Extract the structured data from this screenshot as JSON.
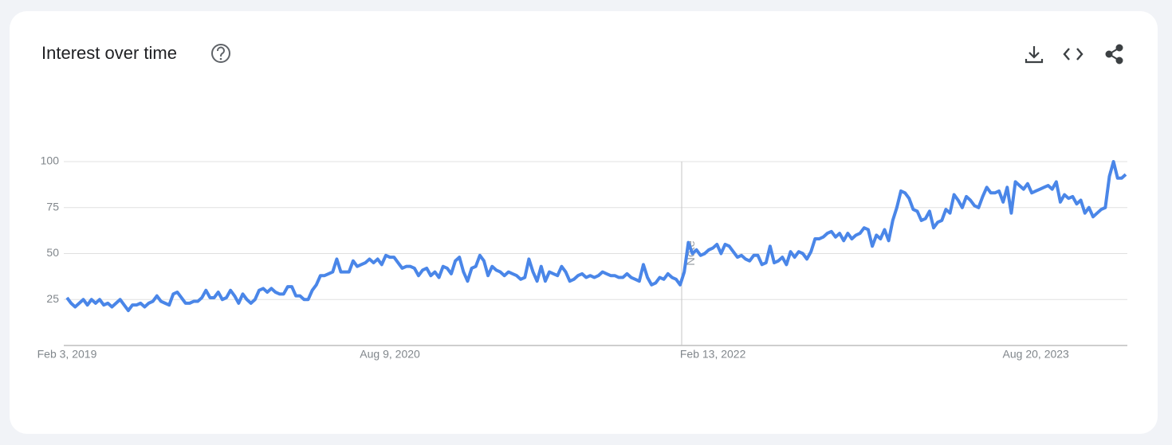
{
  "title": "Interest over time",
  "chart_data": {
    "type": "line",
    "color": "#4a86e8",
    "grid": true,
    "annotations": [
      "Note"
    ],
    "categories": [
      "Feb 3, 2019",
      null,
      null,
      null,
      null,
      null,
      null,
      null,
      null,
      null,
      null,
      null,
      null,
      null,
      null,
      null,
      null,
      null,
      null,
      null,
      null,
      null,
      null,
      null,
      null,
      null,
      null,
      null,
      null,
      null,
      null,
      null,
      null,
      null,
      null,
      null,
      null,
      null,
      null,
      null,
      null,
      null,
      null,
      null,
      null,
      null,
      null,
      null,
      null,
      null,
      null,
      null,
      null,
      null,
      null,
      null,
      null,
      null,
      null,
      null,
      null,
      null,
      null,
      null,
      null,
      null,
      null,
      null,
      null,
      null,
      null,
      null,
      null,
      null,
      null,
      null,
      null,
      null,
      null,
      "Aug 9, 2020",
      null,
      null,
      null,
      null,
      null,
      null,
      null,
      null,
      null,
      null,
      null,
      null,
      null,
      null,
      null,
      null,
      null,
      null,
      null,
      null,
      null,
      null,
      null,
      null,
      null,
      null,
      null,
      null,
      null,
      null,
      null,
      null,
      null,
      null,
      null,
      null,
      null,
      null,
      null,
      null,
      null,
      null,
      null,
      null,
      null,
      null,
      null,
      null,
      null,
      null,
      null,
      null,
      null,
      null,
      null,
      null,
      null,
      null,
      null,
      null,
      null,
      null,
      null,
      null,
      null,
      null,
      null,
      null,
      null,
      null,
      null,
      null,
      null,
      null,
      null,
      null,
      null,
      null,
      "Feb 13, 2022",
      null,
      null,
      null,
      null,
      null,
      null,
      null,
      null,
      null,
      null,
      null,
      null,
      null,
      null,
      null,
      null,
      null,
      null,
      null,
      null,
      null,
      null,
      null,
      null,
      null,
      null,
      null,
      null,
      null,
      null,
      null,
      null,
      null,
      null,
      null,
      null,
      null,
      null,
      null,
      null,
      null,
      null,
      null,
      null,
      null,
      null,
      null,
      null,
      null,
      null,
      null,
      null,
      null,
      null,
      null,
      null,
      null,
      null,
      null,
      null,
      null,
      null,
      null,
      null,
      null,
      null,
      null,
      null,
      null,
      null,
      null,
      null,
      null,
      null,
      null,
      null,
      null,
      null,
      "Aug 20, 2023",
      null,
      null,
      null,
      null,
      null,
      null,
      null,
      null,
      null,
      null,
      null,
      null,
      null,
      null,
      null,
      null,
      null,
      null,
      null,
      null,
      null,
      null
    ],
    "values": [
      26,
      23,
      21,
      23,
      25,
      22,
      25,
      23,
      25,
      22,
      23,
      21,
      23,
      25,
      22,
      19,
      22,
      22,
      23,
      21,
      23,
      24,
      27,
      24,
      23,
      22,
      28,
      29,
      26,
      23,
      23,
      24,
      24,
      26,
      30,
      26,
      26,
      29,
      25,
      26,
      30,
      27,
      23,
      28,
      25,
      23,
      25,
      30,
      31,
      29,
      31,
      29,
      28,
      28,
      32,
      32,
      27,
      27,
      25,
      25,
      30,
      33,
      38,
      38,
      39,
      40,
      47,
      40,
      40,
      40,
      46,
      43,
      44,
      45,
      47,
      45,
      47,
      44,
      49,
      48,
      48,
      45,
      42,
      43,
      43,
      42,
      38,
      41,
      42,
      38,
      40,
      37,
      43,
      42,
      39,
      46,
      48,
      40,
      35,
      42,
      43,
      49,
      46,
      38,
      43,
      41,
      40,
      38,
      40,
      39,
      38,
      36,
      37,
      47,
      40,
      35,
      43,
      35,
      40,
      39,
      38,
      43,
      40,
      35,
      36,
      38,
      39,
      37,
      38,
      37,
      38,
      40,
      39,
      38,
      38,
      37,
      37,
      39,
      37,
      36,
      35,
      44,
      37,
      33,
      34,
      37,
      36,
      39,
      37,
      36,
      33,
      40,
      56,
      50,
      52,
      49,
      50,
      52,
      53,
      55,
      50,
      55,
      54,
      51,
      48,
      49,
      47,
      46,
      49,
      49,
      44,
      45,
      54,
      45,
      46,
      48,
      44,
      51,
      48,
      51,
      50,
      47,
      51,
      58,
      58,
      59,
      61,
      62,
      59,
      61,
      57,
      61,
      58,
      60,
      61,
      64,
      63,
      54,
      60,
      58,
      63,
      57,
      68,
      75,
      84,
      83,
      80,
      74,
      73,
      68,
      69,
      73,
      64,
      67,
      68,
      74,
      72,
      82,
      79,
      75,
      81,
      79,
      76,
      75,
      81,
      86,
      83,
      83,
      84,
      78,
      86,
      72,
      89,
      87,
      85,
      88,
      83,
      84,
      85,
      86,
      87,
      85,
      89,
      78,
      82,
      80,
      81,
      77,
      79,
      72,
      75,
      70,
      72,
      74,
      75,
      92,
      100,
      91,
      91,
      93
    ],
    "ylim": [
      0,
      100
    ],
    "yticks": [
      25,
      50,
      75,
      100
    ]
  }
}
